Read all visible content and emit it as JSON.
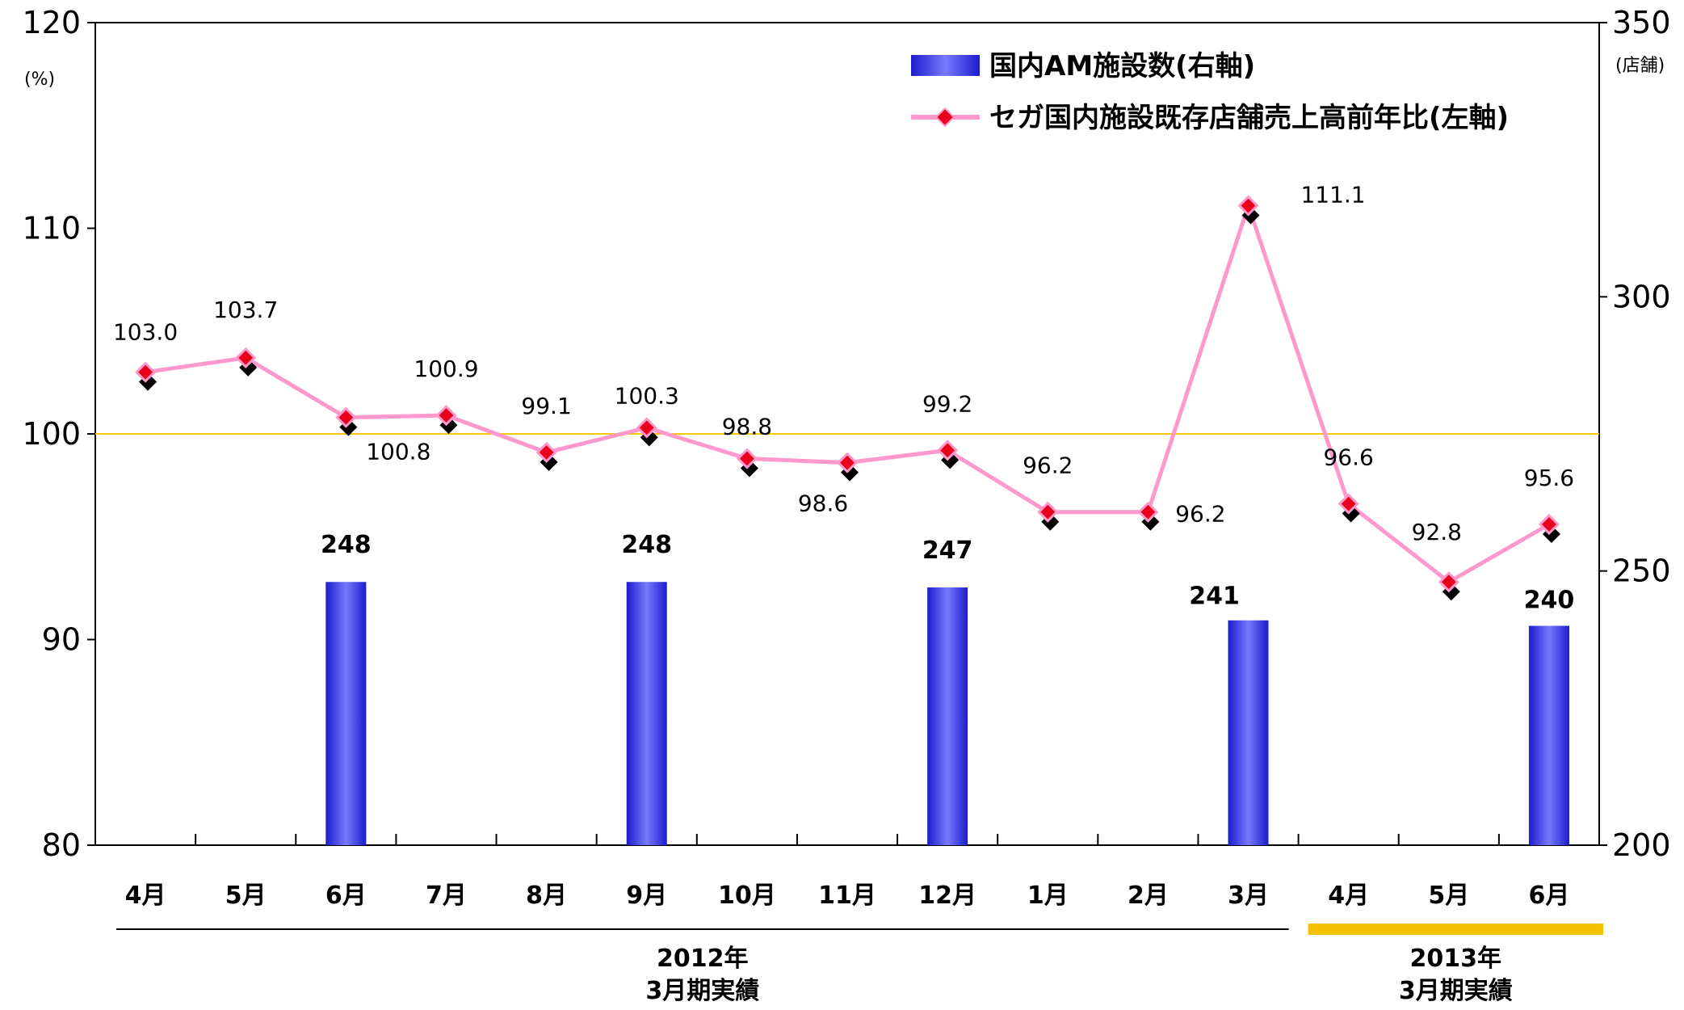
{
  "chart_data": {
    "type": "bar+line",
    "categories": [
      "4月",
      "5月",
      "6月",
      "7月",
      "8月",
      "9月",
      "10月",
      "11月",
      "12月",
      "1月",
      "2月",
      "3月",
      "4月",
      "5月",
      "6月"
    ],
    "series": [
      {
        "name": "国内AM施設数(右軸)",
        "type": "bar",
        "axis": "right",
        "values": [
          null,
          null,
          248,
          null,
          null,
          248,
          null,
          null,
          247,
          null,
          null,
          241,
          null,
          null,
          240
        ],
        "labels": [
          "",
          "",
          "248",
          "",
          "",
          "248",
          "",
          "",
          "247",
          "",
          "",
          "241",
          "",
          "",
          "240"
        ],
        "color": "#3c3cf0"
      },
      {
        "name": "セガ国内施設既存店舗売上高前年比(左軸)",
        "type": "line",
        "axis": "left",
        "values": [
          103.0,
          103.7,
          100.8,
          100.9,
          99.1,
          100.3,
          98.8,
          98.6,
          99.2,
          96.2,
          96.2,
          111.1,
          96.6,
          92.8,
          95.6
        ],
        "labels": [
          "103.0",
          "103.7",
          "100.8",
          "100.9",
          "99.1",
          "100.3",
          "98.8",
          "98.6",
          "99.2",
          "96.2",
          "96.2",
          "111.1",
          "96.6",
          "92.8",
          "95.6"
        ],
        "color": "#ff99cc",
        "marker_color": "#e8001c"
      }
    ],
    "y_left": {
      "range": [
        80,
        120
      ],
      "ticks": [
        "80",
        "90",
        "100",
        "110",
        "120"
      ],
      "unit": "(%)"
    },
    "y_right": {
      "range": [
        200,
        350
      ],
      "ticks": [
        "200",
        "250",
        "300",
        "350"
      ],
      "unit": "(店舗)"
    },
    "reference_line": {
      "value": 100,
      "color": "#f5c800"
    },
    "legend": [
      {
        "label": "国内AM施設数(右軸)",
        "kind": "bar"
      },
      {
        "label": "セガ国内施設既存店舗売上高前年比(左軸)",
        "kind": "line"
      }
    ],
    "groups": [
      {
        "line1": "2012年",
        "line2": "3月期実績",
        "from": 0,
        "to": 11,
        "color": "#000000"
      },
      {
        "line1": "2013年",
        "line2": "3月期実績",
        "from": 12,
        "to": 14,
        "color": "#f5c000"
      }
    ],
    "grid": false,
    "legend_position": "top-right"
  }
}
